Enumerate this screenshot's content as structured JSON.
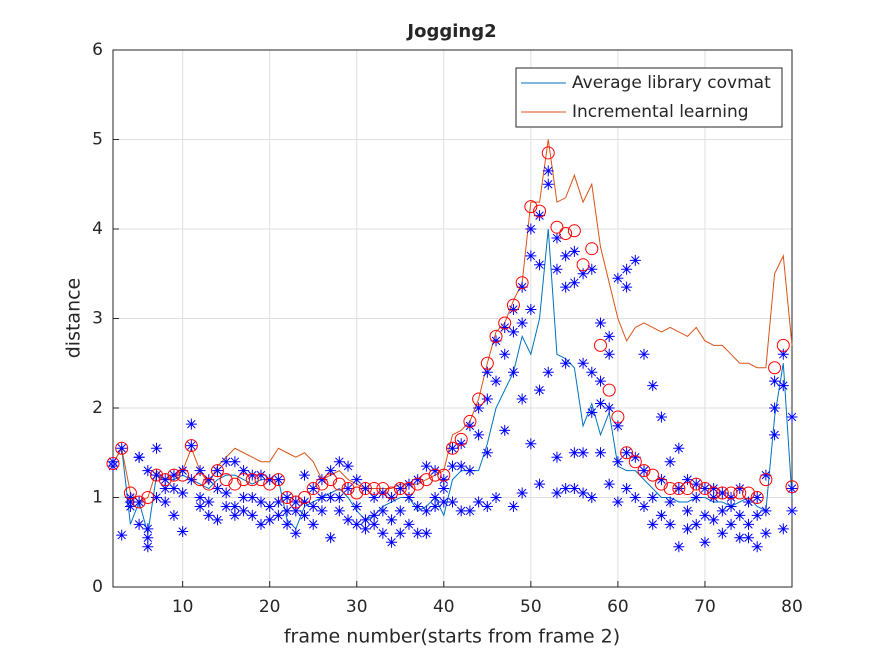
{
  "chart_data": {
    "type": "line",
    "title": "Jogging2",
    "x_label": "frame number(starts from frame 2)",
    "y_label": "distance",
    "x": [
      2,
      3,
      4,
      5,
      6,
      7,
      8,
      9,
      10,
      11,
      12,
      13,
      14,
      15,
      16,
      17,
      18,
      19,
      20,
      21,
      22,
      23,
      24,
      25,
      26,
      27,
      28,
      29,
      30,
      31,
      32,
      33,
      34,
      35,
      36,
      37,
      38,
      39,
      40,
      41,
      42,
      43,
      44,
      45,
      46,
      47,
      48,
      49,
      50,
      51,
      52,
      53,
      54,
      55,
      56,
      57,
      58,
      59,
      60,
      61,
      62,
      63,
      64,
      65,
      66,
      67,
      68,
      69,
      70,
      71,
      72,
      73,
      74,
      75,
      76,
      77,
      78,
      79,
      80
    ],
    "series": [
      {
        "name": "Average library covmat",
        "color": "#0072bd",
        "values": [
          1.38,
          1.55,
          0.7,
          0.95,
          0.6,
          1.25,
          1.2,
          1.2,
          1.25,
          1.2,
          1.15,
          1.1,
          1.2,
          1.25,
          1.25,
          1.2,
          1.15,
          1.2,
          1.2,
          1.2,
          0.75,
          0.65,
          0.9,
          0.95,
          1.0,
          1.05,
          1.1,
          1.0,
          0.85,
          0.75,
          0.8,
          0.9,
          0.95,
          1.0,
          1.0,
          0.85,
          0.9,
          1.0,
          0.8,
          1.2,
          1.3,
          1.3,
          1.3,
          1.6,
          2.0,
          2.2,
          2.4,
          2.8,
          2.6,
          3.0,
          4.0,
          2.6,
          2.55,
          2.45,
          1.8,
          2.05,
          1.7,
          1.95,
          1.35,
          1.3,
          1.3,
          1.2,
          1.1,
          1.0,
          1.0,
          0.95,
          0.95,
          1.0,
          1.0,
          0.95,
          0.95,
          0.9,
          0.95,
          1.0,
          0.9,
          0.85,
          1.9,
          2.5,
          1.0
        ]
      },
      {
        "name": "Incremental learning",
        "color": "#d95319",
        "values": [
          1.38,
          1.55,
          1.05,
          0.95,
          1.0,
          1.3,
          1.2,
          1.25,
          1.3,
          1.55,
          1.3,
          1.15,
          1.35,
          1.45,
          1.55,
          1.5,
          1.45,
          1.4,
          1.4,
          1.55,
          1.5,
          1.45,
          1.5,
          1.4,
          1.2,
          1.25,
          1.3,
          1.2,
          1.15,
          1.1,
          1.1,
          1.1,
          1.1,
          1.15,
          1.15,
          1.15,
          1.2,
          1.25,
          1.3,
          1.7,
          1.75,
          1.85,
          2.1,
          2.5,
          2.85,
          2.95,
          3.2,
          3.4,
          4.3,
          4.3,
          5.0,
          4.3,
          4.35,
          4.6,
          4.3,
          4.5,
          3.8,
          3.4,
          3.0,
          2.75,
          2.9,
          2.95,
          2.9,
          2.85,
          2.9,
          2.85,
          2.8,
          2.9,
          2.75,
          2.7,
          2.7,
          2.6,
          2.5,
          2.5,
          2.45,
          2.45,
          3.5,
          3.7,
          2.7
        ]
      }
    ],
    "circles": {
      "color": "#ff0000",
      "values": [
        1.38,
        1.55,
        1.05,
        0.95,
        1.0,
        1.25,
        1.2,
        1.25,
        1.25,
        1.58,
        1.2,
        1.15,
        1.3,
        1.2,
        1.15,
        1.2,
        1.2,
        1.2,
        1.15,
        1.2,
        1.0,
        0.95,
        1.0,
        1.1,
        1.15,
        1.2,
        1.15,
        1.1,
        1.05,
        1.1,
        1.1,
        1.1,
        1.05,
        1.1,
        1.1,
        1.15,
        1.2,
        1.25,
        1.25,
        1.55,
        1.65,
        1.85,
        2.1,
        2.5,
        2.8,
        2.95,
        3.15,
        3.4,
        4.25,
        4.2,
        4.85,
        4.02,
        3.95,
        3.98,
        3.6,
        3.78,
        2.7,
        2.2,
        1.9,
        1.5,
        1.4,
        1.3,
        1.25,
        1.15,
        1.1,
        1.1,
        1.1,
        1.15,
        1.1,
        1.05,
        1.05,
        1.05,
        1.05,
        1.05,
        1.0,
        1.2,
        2.45,
        2.7,
        1.12
      ]
    },
    "stars": {
      "color": "#0000ff",
      "values": [
        [
          1.4,
          1.35
        ],
        [
          1.55,
          0.58
        ],
        [
          1.0,
          0.95,
          0.9
        ],
        [
          1.45,
          0.95,
          0.7,
          1.45
        ],
        [
          0.55,
          0.45,
          1.3,
          0.65
        ],
        [
          1.55,
          1.25,
          1.0
        ],
        [
          1.1,
          1.2,
          0.95
        ],
        [
          1.25,
          0.8,
          1.1
        ],
        [
          0.62,
          1.3,
          1.05
        ],
        [
          1.82,
          1.58,
          1.2
        ],
        [
          1.0,
          0.9,
          1.3
        ],
        [
          0.8,
          0.95,
          1.2
        ],
        [
          1.3,
          0.75,
          1.1
        ],
        [
          1.4,
          0.9,
          1.05
        ],
        [
          1.4,
          0.8,
          0.9
        ],
        [
          1.3,
          1.0,
          0.85
        ],
        [
          1.25,
          0.8,
          1.0
        ],
        [
          0.7,
          0.95,
          1.25
        ],
        [
          0.75,
          0.9,
          1.2
        ],
        [
          1.2,
          0.95,
          0.8
        ],
        [
          0.85,
          0.7,
          1.0
        ],
        [
          0.6,
          0.95,
          0.85
        ],
        [
          1.25,
          0.95,
          0.8
        ],
        [
          1.1,
          0.9,
          0.7
        ],
        [
          1.2,
          1.0,
          0.85
        ],
        [
          0.55,
          1.3,
          1.0
        ],
        [
          1.4,
          1.0,
          0.85
        ],
        [
          1.35,
          0.75,
          1.1
        ],
        [
          0.7,
          1.2,
          0.9
        ],
        [
          0.75,
          1.1,
          0.65
        ],
        [
          0.8,
          1.0,
          0.7
        ],
        [
          1.05,
          0.6,
          0.85
        ],
        [
          0.5,
          1.0,
          0.75
        ],
        [
          1.1,
          0.85,
          0.6
        ],
        [
          1.15,
          0.7,
          1.0
        ],
        [
          0.6,
          1.2,
          0.9
        ],
        [
          1.35,
          0.85,
          0.6
        ],
        [
          1.3,
          1.0,
          0.9
        ],
        [
          1.2,
          0.95,
          1.1
        ],
        [
          1.55,
          0.95,
          1.35
        ],
        [
          1.6,
          0.85,
          1.35
        ],
        [
          1.8,
          0.85,
          1.3
        ],
        [
          2.0,
          1.7,
          0.95
        ],
        [
          2.4,
          2.1,
          0.9,
          1.5
        ],
        [
          2.75,
          2.3,
          1.0
        ],
        [
          2.9,
          2.6,
          1.75
        ],
        [
          3.1,
          2.85,
          2.4,
          0.9
        ],
        [
          3.35,
          2.95,
          2.1,
          1.05
        ],
        [
          4.0,
          3.7,
          1.6,
          3.1
        ],
        [
          4.15,
          3.6,
          2.2,
          1.15
        ],
        [
          4.65,
          4.5,
          2.4
        ],
        [
          3.9,
          3.55,
          1.05,
          1.45
        ],
        [
          3.7,
          3.35,
          2.5,
          1.1
        ],
        [
          3.75,
          3.4,
          1.5,
          1.1
        ],
        [
          3.5,
          2.5,
          1.5,
          1.05
        ],
        [
          3.55,
          2.4,
          1.95,
          1.0
        ],
        [
          2.95,
          2.3,
          2.05,
          1.5
        ],
        [
          2.8,
          2.6,
          2.0,
          1.15
        ],
        [
          3.45,
          1.8,
          1.4,
          0.95
        ],
        [
          3.55,
          3.35,
          1.5,
          1.1
        ],
        [
          3.65,
          1.45,
          1.0
        ],
        [
          2.6,
          1.3,
          0.9
        ],
        [
          2.25,
          1.0,
          0.7
        ],
        [
          1.9,
          1.2,
          0.8
        ],
        [
          1.4,
          0.95,
          0.7
        ],
        [
          1.55,
          1.1,
          0.45
        ],
        [
          1.2,
          0.85,
          0.65
        ],
        [
          1.15,
          1.0,
          0.7
        ],
        [
          1.1,
          0.8,
          0.5
        ],
        [
          1.0,
          0.75,
          1.1
        ],
        [
          1.05,
          0.85,
          0.6
        ],
        [
          1.0,
          0.7,
          0.9
        ],
        [
          1.1,
          0.8,
          0.55
        ],
        [
          0.95,
          0.7,
          0.55
        ],
        [
          1.0,
          0.45,
          0.8
        ],
        [
          1.25,
          0.85,
          0.6
        ],
        [
          2.3,
          2.0,
          1.7
        ],
        [
          2.6,
          2.25,
          0.65
        ],
        [
          1.9,
          1.1,
          0.85
        ]
      ]
    },
    "xlim": [
      2,
      80
    ],
    "ylim": [
      0,
      6
    ],
    "xticks": [
      10,
      20,
      30,
      40,
      50,
      60,
      70,
      80
    ],
    "yticks": [
      0,
      1,
      2,
      3,
      4,
      5,
      6
    ],
    "grid": true,
    "legend": "northeast"
  }
}
